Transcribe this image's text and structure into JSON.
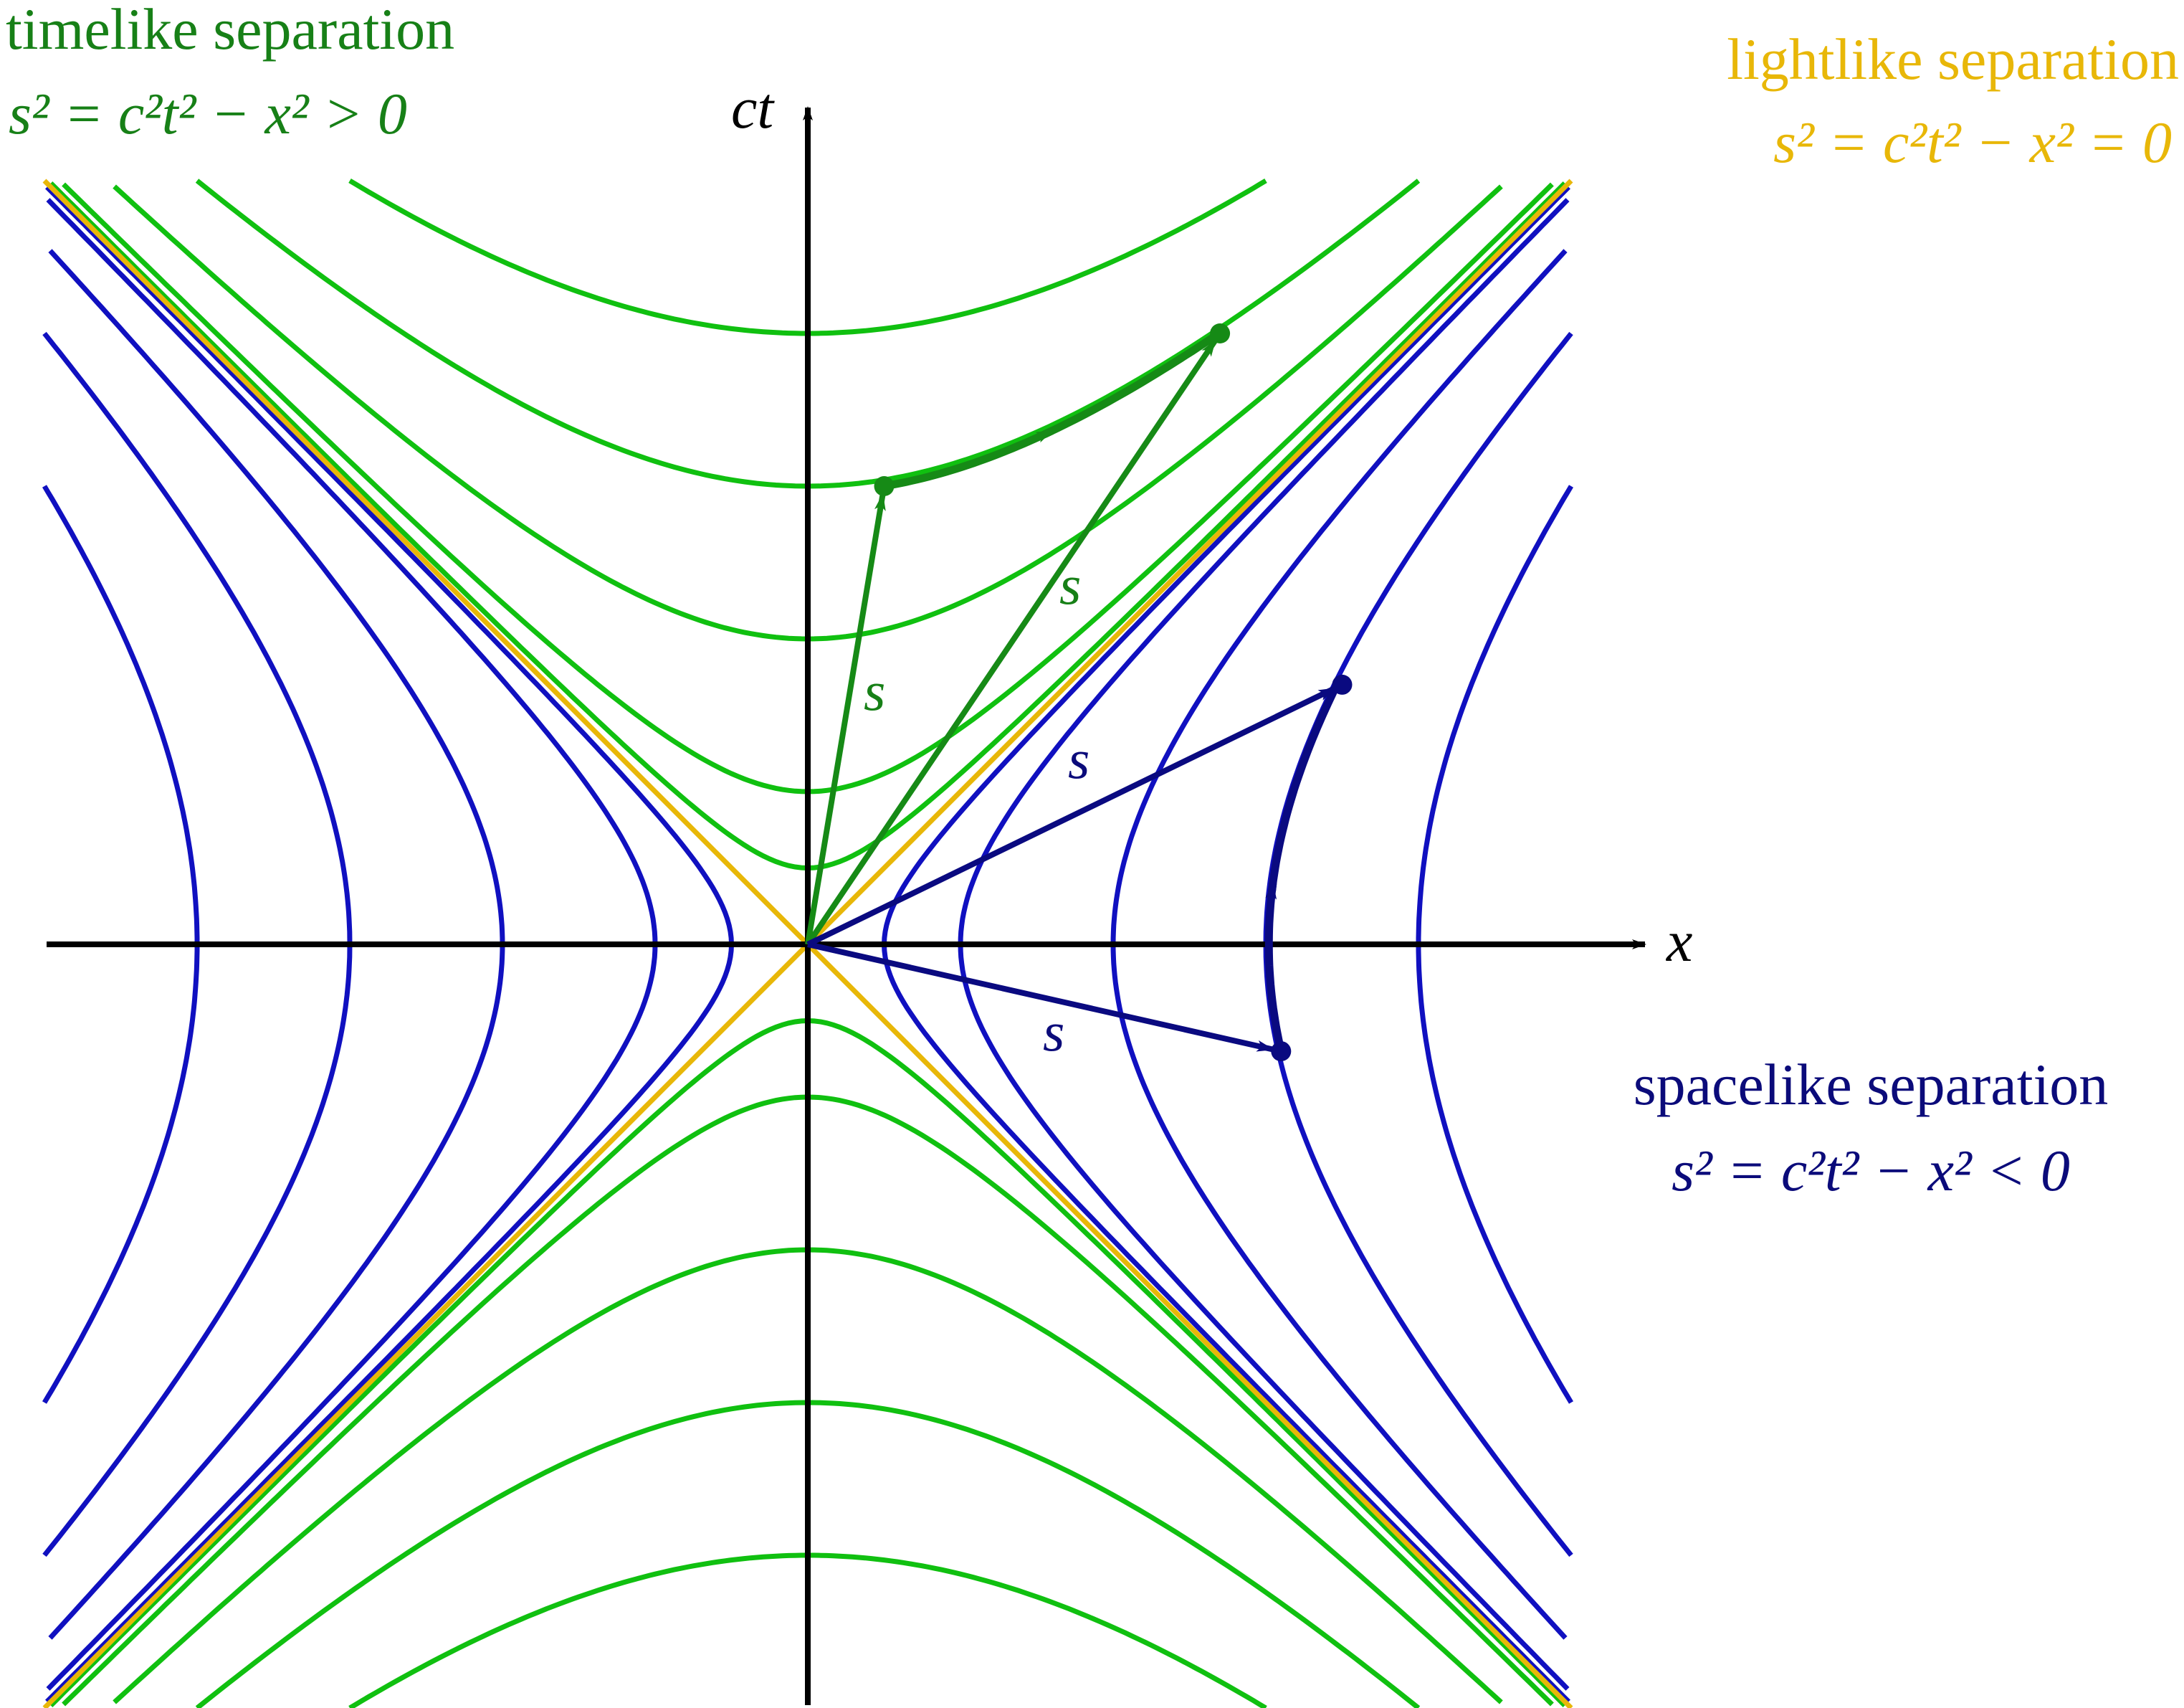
{
  "labels": {
    "timelike_title": "timelike separation",
    "timelike_eq": "s² = c²t² − x² > 0",
    "lightlike_title": "lightlike separation",
    "lightlike_eq": "s² = c²t² − x² = 0",
    "spacelike_title": "spacelike separation",
    "spacelike_eq": "s² = c²t² − x² < 0",
    "axis_t": "ct",
    "axis_x": "x",
    "interval_label": "s"
  },
  "colors": {
    "timelike_label": "#178017",
    "timelike_curve": "#10c010",
    "timelike_vector": "#168a16",
    "lightlike": "#e8b708",
    "spacelike_label": "#0b0b7a",
    "spacelike_curve": "#1010c0",
    "spacelike_vector": "#0a0a80",
    "axis": "#000000"
  },
  "diagram": {
    "x_range": [
      -5,
      5
    ],
    "ct_range": [
      -5,
      5
    ],
    "timelike_hyperbola_s": [
      1,
      2,
      3,
      4,
      5,
      0.5
    ],
    "spacelike_hyperbola_s": [
      1,
      2,
      3,
      4,
      5,
      0.5
    ],
    "timelike_events": [
      [
        0.5,
        3.0
      ],
      [
        2.7,
        4.0
      ]
    ],
    "spacelike_events": [
      [
        3.1,
        -0.7
      ],
      [
        3.5,
        1.7
      ]
    ]
  }
}
